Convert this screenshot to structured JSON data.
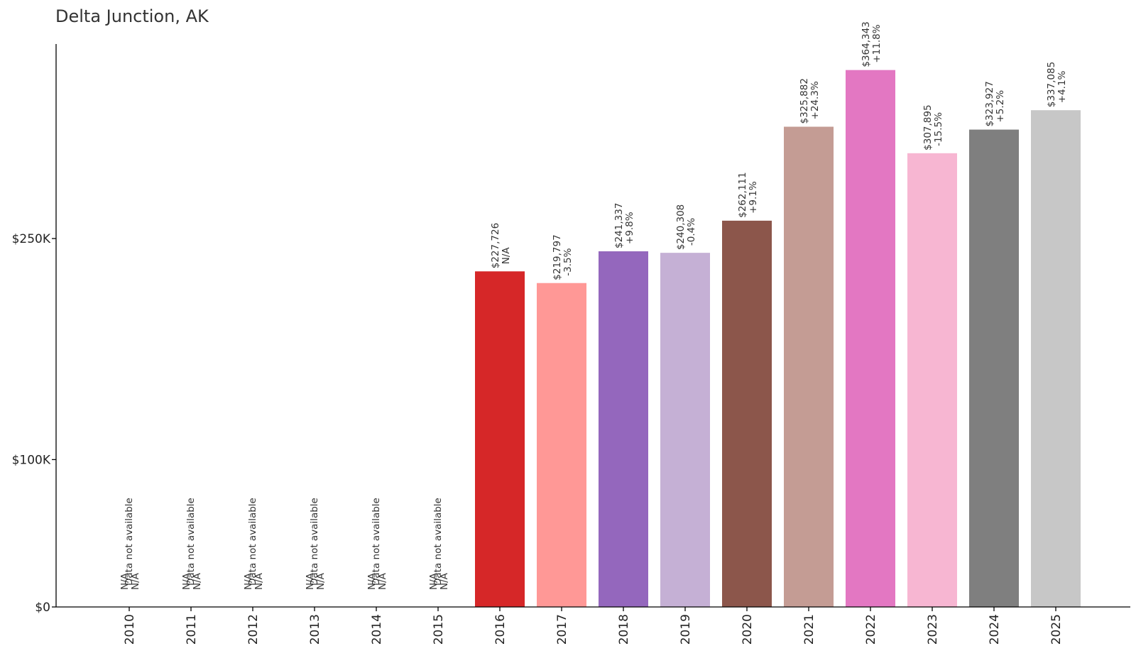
{
  "chart_data": {
    "type": "bar",
    "title": "Delta Junction, AK",
    "xlabel": "",
    "ylabel": "",
    "ylim": [
      0,
      382000
    ],
    "grid": false,
    "legend": "none",
    "categories": [
      "2010",
      "2011",
      "2012",
      "2013",
      "2014",
      "2015",
      "2016",
      "2017",
      "2018",
      "2019",
      "2020",
      "2021",
      "2022",
      "2023",
      "2024",
      "2025"
    ],
    "values": [
      null,
      null,
      null,
      null,
      null,
      null,
      227726,
      219797,
      241337,
      240308,
      262111,
      325882,
      364343,
      307895,
      323927,
      337085
    ],
    "value_labels": [
      "N/A",
      "N/A",
      "N/A",
      "N/A",
      "N/A",
      "N/A",
      "$227,726",
      "$219,797",
      "$241,337",
      "$240,308",
      "$262,111",
      "$325,882",
      "$364,343",
      "$307,895",
      "$323,927",
      "$337,085"
    ],
    "change_labels": [
      "N/A",
      "N/A",
      "N/A",
      "N/A",
      "N/A",
      "N/A",
      "N/A",
      "-3.5%",
      "+9.8%",
      "-0.4%",
      "+9.1%",
      "+24.3%",
      "+11.8%",
      "-15.5%",
      "+5.2%",
      "+4.1%"
    ],
    "missing_note": "Data not available",
    "y_ticks": [
      {
        "value": 0,
        "label": "$0"
      },
      {
        "value": 100000,
        "label": "$100K"
      },
      {
        "value": 250000,
        "label": "$250K"
      }
    ],
    "colors": [
      "#1f77b4",
      "#aec7e8",
      "#ff7f0e",
      "#ffbb78",
      "#2ca02c",
      "#98df8a",
      "#d62728",
      "#ff9896",
      "#9467bd",
      "#c5b0d5",
      "#8c564b",
      "#c49c94",
      "#e377c2",
      "#f7b6d2",
      "#7f7f7f",
      "#c7c7c7"
    ]
  }
}
